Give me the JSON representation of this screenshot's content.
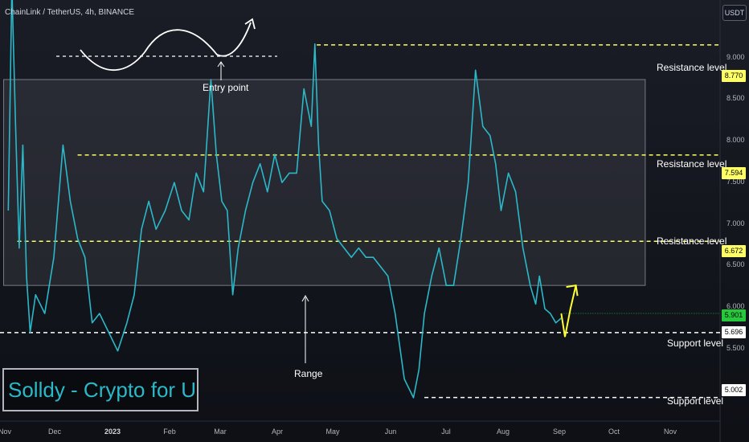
{
  "header": {
    "symbol_line": "ChainLink / TetherUS, 4h, BINANCE",
    "currency_button": "USDT"
  },
  "watermark": "Solldy - Crypto for U",
  "annotations": {
    "entry": "Entry point",
    "range": "Range"
  },
  "level_labels": {
    "res_high": "Resistance level",
    "res_mid": "Resistance level",
    "res_low": "Resistance level",
    "sup_high": "Support level",
    "sup_low": "Support level"
  },
  "price_tags": {
    "t8770": "8.770",
    "t7594": "7.594",
    "t6672": "6.672",
    "t5901": "5.901",
    "t5696": "5.696",
    "t5002": "5.002"
  },
  "y_ticks": {
    "t9000": "9.000",
    "t8500": "8.500",
    "t8000": "8.000",
    "t7500": "7.500",
    "t7000": "7.000",
    "t6500": "6.500",
    "t6000": "6.000",
    "t5500": "5.500"
  },
  "x_ticks": {
    "nov": "Nov",
    "dec": "Dec",
    "y2023": "2023",
    "feb": "Feb",
    "mar": "Mar",
    "apr": "Apr",
    "may": "May",
    "jun": "Jun",
    "jul": "Jul",
    "aug": "Aug",
    "sep": "Sep",
    "oct": "Oct",
    "nov2": "Nov"
  },
  "colors": {
    "background": "#131722",
    "line": "#2bb8c8",
    "resistance": "#ffff66",
    "support": "#ffffff",
    "current_price": "#26c93c",
    "range_box": "#787b86",
    "projection_arrow": "#ffff33"
  },
  "chart_data": {
    "type": "line",
    "y_axis_unit": "USDT",
    "ylim": [
      4.75,
      9.25
    ],
    "last_price": 5.901,
    "levels": [
      {
        "kind": "resistance",
        "value": 8.77
      },
      {
        "kind": "resistance",
        "value": 7.594
      },
      {
        "kind": "resistance",
        "value": 6.672
      },
      {
        "kind": "support",
        "value": 5.696
      },
      {
        "kind": "support",
        "value": 5.002
      }
    ],
    "range_box": {
      "start": "2022-11-01",
      "end": "2023-10-15",
      "low": 6.2,
      "high": 8.4
    },
    "series": [
      {
        "x": [
          "2022-10-31",
          "2022-11-02",
          "2022-11-04",
          "2022-11-06",
          "2022-11-08",
          "2022-11-10",
          "2022-11-12",
          "2022-11-15",
          "2022-11-20",
          "2022-11-25",
          "2022-11-30",
          "2022-12-04",
          "2022-12-08",
          "2022-12-12",
          "2022-12-16",
          "2022-12-20",
          "2022-12-25",
          "2022-12-30",
          "2023-01-04",
          "2023-01-08",
          "2023-01-12",
          "2023-01-16",
          "2023-01-20",
          "2023-01-25",
          "2023-01-30",
          "2023-02-03",
          "2023-02-07",
          "2023-02-11",
          "2023-02-15",
          "2023-02-19",
          "2023-02-22",
          "2023-02-25",
          "2023-02-28",
          "2023-03-03",
          "2023-03-06",
          "2023-03-10",
          "2023-03-14",
          "2023-03-18",
          "2023-03-22",
          "2023-03-26",
          "2023-03-30",
          "2023-04-03",
          "2023-04-07",
          "2023-04-11",
          "2023-04-15",
          "2023-04-17",
          "2023-04-19",
          "2023-04-21",
          "2023-04-25",
          "2023-04-29",
          "2023-05-03",
          "2023-05-07",
          "2023-05-11",
          "2023-05-15",
          "2023-05-19",
          "2023-05-23",
          "2023-05-27",
          "2023-05-31",
          "2023-06-05",
          "2023-06-10",
          "2023-06-13",
          "2023-06-16",
          "2023-06-20",
          "2023-06-24",
          "2023-06-28",
          "2023-07-02",
          "2023-07-06",
          "2023-07-10",
          "2023-07-14",
          "2023-07-18",
          "2023-07-22",
          "2023-07-25",
          "2023-07-28",
          "2023-08-01",
          "2023-08-05",
          "2023-08-09",
          "2023-08-13",
          "2023-08-16",
          "2023-08-18",
          "2023-08-21",
          "2023-08-24",
          "2023-08-27",
          "2023-08-30"
        ],
        "y": [
          7.0,
          9.4,
          7.9,
          6.6,
          7.7,
          6.3,
          5.7,
          6.1,
          5.9,
          6.5,
          7.7,
          7.1,
          6.7,
          6.5,
          5.8,
          5.9,
          5.7,
          5.5,
          5.8,
          6.1,
          6.8,
          7.1,
          6.8,
          7.0,
          7.3,
          7.0,
          6.9,
          7.4,
          7.2,
          8.4,
          7.6,
          7.1,
          7.0,
          6.1,
          6.6,
          7.0,
          7.3,
          7.5,
          7.2,
          7.6,
          7.3,
          7.4,
          7.4,
          8.3,
          7.9,
          8.78,
          7.7,
          7.1,
          7.0,
          6.7,
          6.6,
          6.5,
          6.6,
          6.5,
          6.5,
          6.4,
          6.3,
          5.9,
          5.2,
          5.0,
          5.3,
          5.9,
          6.3,
          6.6,
          6.2,
          6.2,
          6.7,
          7.3,
          8.5,
          7.9,
          7.8,
          7.5,
          7.0,
          7.4,
          7.2,
          6.6,
          6.2,
          6.0,
          6.3,
          5.95,
          5.9,
          5.8,
          5.85
        ]
      }
    ],
    "projection": {
      "x": [
        "2023-08-30",
        "2023-09-01",
        "2023-09-04",
        "2023-09-07"
      ],
      "y": [
        5.9,
        5.65,
        5.95,
        6.2
      ]
    },
    "inset_wave": {
      "baseline": 9.0,
      "note": "sketch of a wave dipping then rising, arrow pointing up-right"
    }
  }
}
